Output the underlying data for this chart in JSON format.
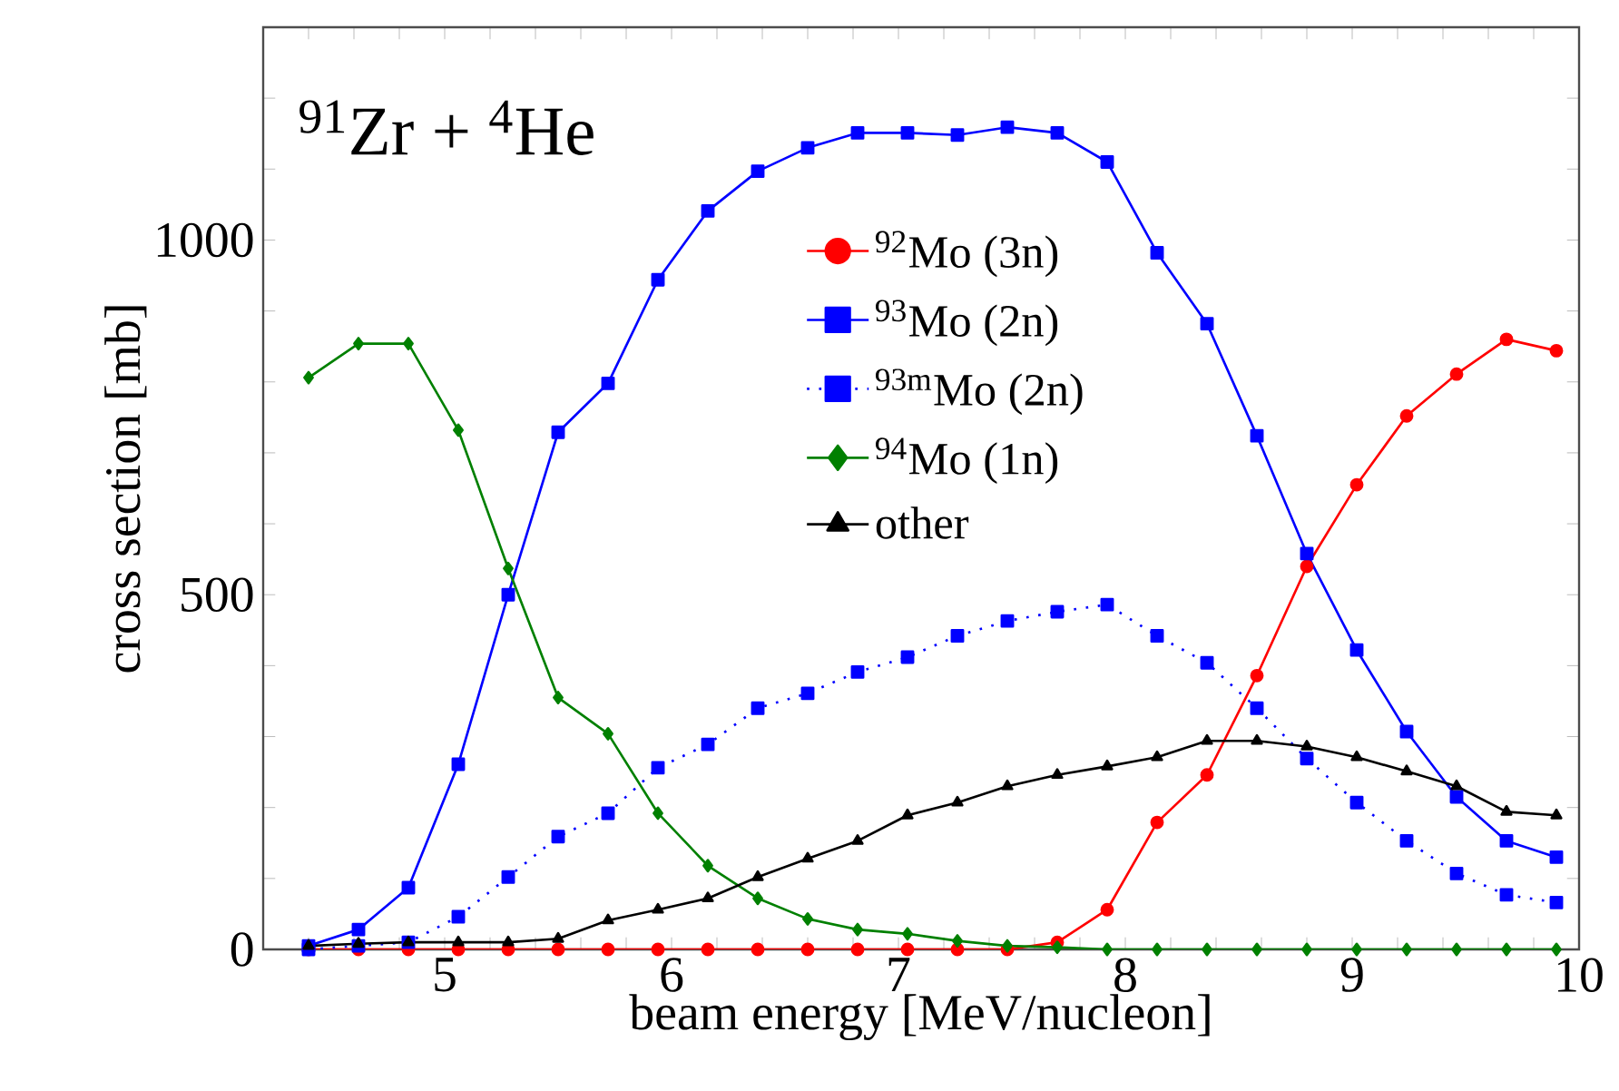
{
  "chart_data": {
    "type": "line",
    "xlabel": "beam energy [MeV/nucleon]",
    "ylabel": "cross section [mb]",
    "annotations": [
      "$^{91}$Zr + $^{4}$He"
    ],
    "x": [
      4.4,
      4.62,
      4.84,
      5.06,
      5.28,
      5.5,
      5.72,
      5.94,
      6.16,
      6.38,
      6.6,
      6.82,
      7.04,
      7.26,
      7.48,
      7.7,
      7.92,
      8.14,
      8.36,
      8.58,
      8.8,
      9.02,
      9.24,
      9.46,
      9.68,
      9.9
    ],
    "series": [
      {
        "name": "$^{92}$Mo (3n)",
        "color": "#ff0000",
        "marker": "circle",
        "line_style": "solid",
        "values": [
          0,
          0,
          0,
          0,
          0,
          0,
          0,
          0,
          0,
          0,
          0,
          0,
          0,
          0,
          0,
          10,
          56,
          179,
          246,
          386,
          540,
          655,
          752,
          811,
          860,
          844
        ]
      },
      {
        "name": "$^{93}$Mo (2n)",
        "color": "#0000ff",
        "marker": "square",
        "line_style": "solid",
        "values": [
          5,
          28,
          87,
          261,
          500,
          729,
          798,
          944,
          1041,
          1097,
          1130,
          1151,
          1151,
          1148,
          1159,
          1151,
          1110,
          982,
          882,
          724,
          558,
          422,
          307,
          215,
          153,
          130
        ]
      },
      {
        "name": "$^{93m}$Mo (2n)",
        "color": "#0000ff",
        "marker": "square",
        "line_style": "dotted",
        "values": [
          0,
          5,
          10,
          46,
          102,
          159,
          192,
          256,
          289,
          340,
          361,
          391,
          412,
          442,
          463,
          476,
          486,
          442,
          404,
          340,
          269,
          207,
          153,
          107,
          77,
          66
        ]
      },
      {
        "name": "$^{94}$Mo (1n)",
        "color": "#008000",
        "marker": "diamond",
        "line_style": "solid",
        "values": [
          806,
          854,
          854,
          732,
          537,
          355,
          304,
          192,
          118,
          72,
          43,
          28,
          22,
          12,
          5,
          3,
          0,
          0,
          0,
          0,
          0,
          0,
          0,
          0,
          0,
          0
        ]
      },
      {
        "name": "other",
        "color": "#000000",
        "marker": "triangle",
        "line_style": "solid",
        "values": [
          5,
          8,
          10,
          10,
          10,
          15,
          41,
          56,
          72,
          102,
          128,
          153,
          189,
          207,
          230,
          246,
          258,
          271,
          294,
          294,
          286,
          271,
          251,
          230,
          194,
          189
        ]
      }
    ],
    "xlim": [
      4.2,
      10
    ],
    "ylim": [
      0,
      1300
    ],
    "xticks": [
      {
        "value": 4.2,
        "label": null
      },
      {
        "value": 4.4,
        "label": null
      },
      {
        "value": 4.6,
        "label": null
      },
      {
        "value": 4.8,
        "label": null
      },
      5,
      {
        "value": 5.2,
        "label": null
      },
      {
        "value": 5.4,
        "label": null
      },
      {
        "value": 5.6,
        "label": null
      },
      {
        "value": 5.8,
        "label": null
      },
      6,
      {
        "value": 6.2,
        "label": null
      },
      {
        "value": 6.4,
        "label": null
      },
      {
        "value": 6.6,
        "label": null
      },
      {
        "value": 6.8,
        "label": null
      },
      7,
      {
        "value": 7.2,
        "label": null
      },
      {
        "value": 7.4,
        "label": null
      },
      {
        "value": 7.6,
        "label": null
      },
      {
        "value": 7.8,
        "label": null
      },
      8,
      {
        "value": 8.2,
        "label": null
      },
      {
        "value": 8.4,
        "label": null
      },
      {
        "value": 8.6,
        "label": null
      },
      {
        "value": 8.8,
        "label": null
      },
      9,
      {
        "value": 9.2,
        "label": null
      },
      {
        "value": 9.4,
        "label": null
      },
      {
        "value": 9.6,
        "label": null
      },
      {
        "value": 9.8,
        "label": null
      },
      10
    ],
    "yticks": [
      0,
      {
        "value": 100,
        "label": null
      },
      {
        "value": 200,
        "label": null
      },
      {
        "value": 300,
        "label": null
      },
      {
        "value": 400,
        "label": null
      },
      500,
      {
        "value": 600,
        "label": null
      },
      {
        "value": 700,
        "label": null
      },
      {
        "value": 800,
        "label": null
      },
      {
        "value": 900,
        "label": null
      },
      1000,
      {
        "value": 1100,
        "label": null
      },
      {
        "value": 1200,
        "label": null
      }
    ],
    "legend": "top",
    "grid": false
  }
}
